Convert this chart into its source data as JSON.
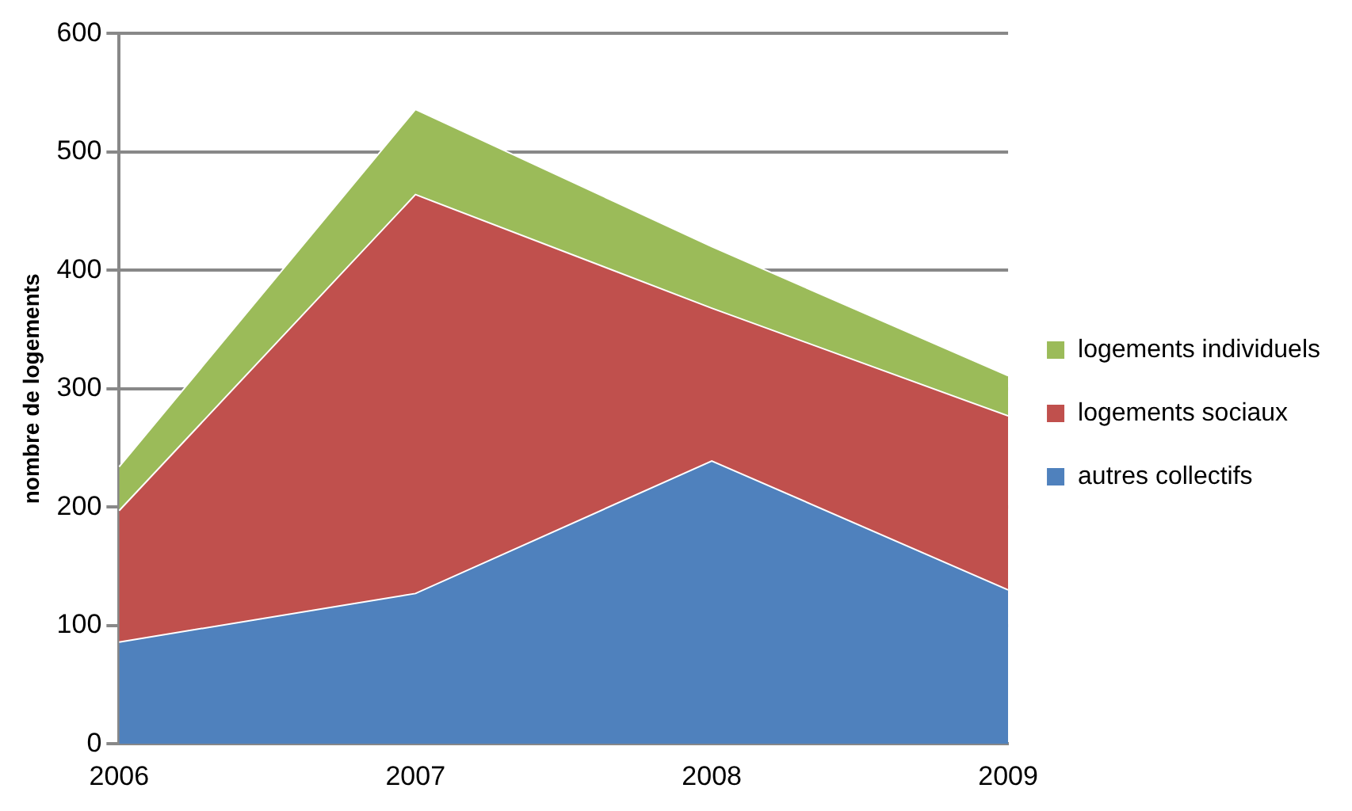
{
  "chart_data": {
    "type": "area",
    "stacked": true,
    "ylabel": "nombre de logements",
    "categories": [
      "2006",
      "2007",
      "2008",
      "2009"
    ],
    "series": [
      {
        "name": "autres collectifs",
        "color": "#4f81bd",
        "values": [
          86,
          127,
          239,
          130
        ]
      },
      {
        "name": "logements sociaux",
        "color": "#c0504d",
        "values": [
          111,
          337,
          129,
          147
        ]
      },
      {
        "name": "logements individuels",
        "color": "#9bbb59",
        "values": [
          37,
          72,
          52,
          34
        ]
      }
    ],
    "ylim": [
      0,
      600
    ],
    "yticks": [
      0,
      100,
      200,
      300,
      400,
      500,
      600
    ],
    "grid": "y",
    "legend": "right"
  }
}
